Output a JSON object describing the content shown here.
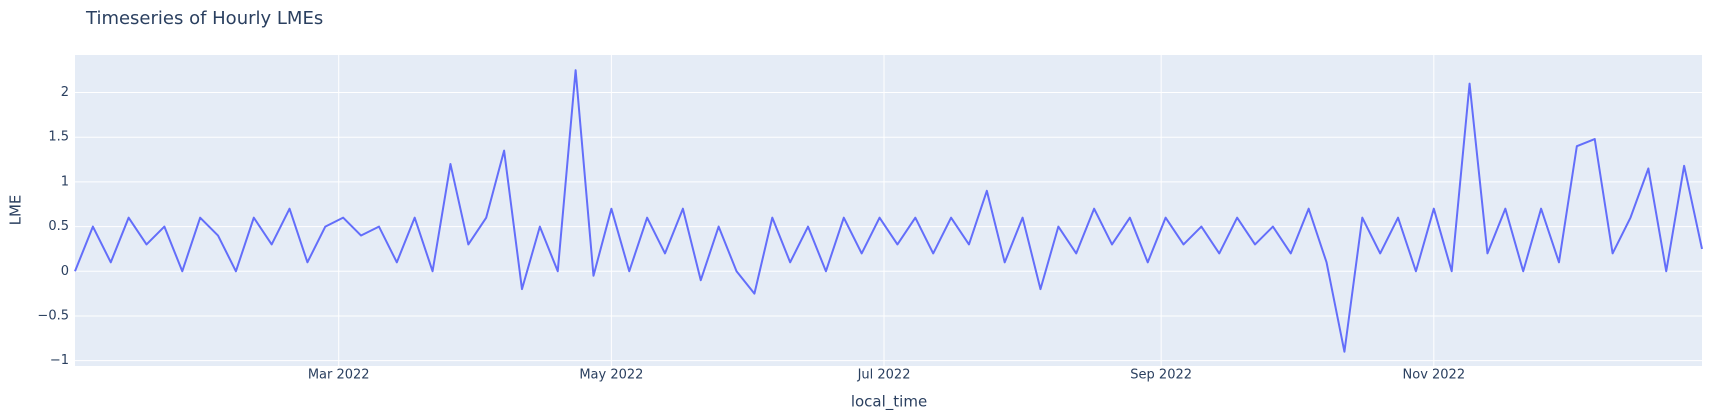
{
  "chart_data": {
    "type": "line",
    "title": "Timeseries of Hourly LMEs",
    "x_label": "local_time",
    "y_label": "LME",
    "grid": true,
    "xlim": [
      "2022-01-01",
      "2022-12-31"
    ],
    "xticks": [
      {
        "value": "2022-03-01",
        "label": "Mar 2022"
      },
      {
        "value": "2022-05-01",
        "label": "May 2022"
      },
      {
        "value": "2022-07-01",
        "label": "Jul 2022"
      },
      {
        "value": "2022-09-01",
        "label": "Sep 2022"
      },
      {
        "value": "2022-11-01",
        "label": "Nov 2022"
      }
    ],
    "ylim": [
      -1.06,
      2.42
    ],
    "yticks": [
      {
        "value": -1,
        "label": "−1"
      },
      {
        "value": -0.5,
        "label": "−0.5"
      },
      0,
      0.5,
      1,
      1.5,
      2
    ],
    "x": [
      "2022-01-01",
      "2022-01-05",
      "2022-01-09",
      "2022-01-13",
      "2022-01-17",
      "2022-01-21",
      "2022-01-25",
      "2022-01-29",
      "2022-02-02",
      "2022-02-06",
      "2022-02-10",
      "2022-02-14",
      "2022-02-18",
      "2022-02-22",
      "2022-02-26",
      "2022-03-02",
      "2022-03-06",
      "2022-03-10",
      "2022-03-14",
      "2022-03-18",
      "2022-03-22",
      "2022-03-26",
      "2022-03-30",
      "2022-04-03",
      "2022-04-07",
      "2022-04-11",
      "2022-04-15",
      "2022-04-19",
      "2022-04-23",
      "2022-04-27",
      "2022-05-01",
      "2022-05-05",
      "2022-05-09",
      "2022-05-13",
      "2022-05-17",
      "2022-05-21",
      "2022-05-25",
      "2022-05-29",
      "2022-06-02",
      "2022-06-06",
      "2022-06-10",
      "2022-06-14",
      "2022-06-18",
      "2022-06-22",
      "2022-06-26",
      "2022-06-30",
      "2022-07-04",
      "2022-07-08",
      "2022-07-12",
      "2022-07-16",
      "2022-07-20",
      "2022-07-24",
      "2022-07-28",
      "2022-08-01",
      "2022-08-05",
      "2022-08-09",
      "2022-08-13",
      "2022-08-17",
      "2022-08-21",
      "2022-08-25",
      "2022-08-29",
      "2022-09-02",
      "2022-09-06",
      "2022-09-10",
      "2022-09-14",
      "2022-09-18",
      "2022-09-22",
      "2022-09-26",
      "2022-09-30",
      "2022-10-04",
      "2022-10-08",
      "2022-10-12",
      "2022-10-16",
      "2022-10-20",
      "2022-10-24",
      "2022-10-28",
      "2022-11-01",
      "2022-11-05",
      "2022-11-09",
      "2022-11-13",
      "2022-11-17",
      "2022-11-21",
      "2022-11-25",
      "2022-11-29",
      "2022-12-03",
      "2022-12-07",
      "2022-12-11",
      "2022-12-15",
      "2022-12-19",
      "2022-12-23",
      "2022-12-27",
      "2022-12-31"
    ],
    "series": [
      {
        "color": "#636efa",
        "values": [
          0.0,
          0.5,
          0.1,
          0.6,
          0.3,
          0.5,
          0.0,
          0.6,
          0.4,
          0.0,
          0.6,
          0.3,
          0.7,
          0.1,
          0.5,
          0.6,
          0.4,
          0.5,
          0.1,
          0.6,
          0.0,
          1.2,
          0.3,
          0.6,
          1.35,
          -0.2,
          0.5,
          0.0,
          2.25,
          -0.05,
          0.7,
          0.0,
          0.6,
          0.2,
          0.7,
          -0.1,
          0.5,
          0.0,
          -0.25,
          0.6,
          0.1,
          0.5,
          0.0,
          0.6,
          0.2,
          0.6,
          0.3,
          0.6,
          0.2,
          0.6,
          0.3,
          0.9,
          0.1,
          0.6,
          -0.2,
          0.5,
          0.2,
          0.7,
          0.3,
          0.6,
          0.1,
          0.6,
          0.3,
          0.5,
          0.2,
          0.6,
          0.3,
          0.5,
          0.2,
          0.7,
          0.1,
          -0.9,
          0.6,
          0.2,
          0.6,
          0.0,
          0.7,
          0.0,
          2.1,
          0.2,
          0.7,
          0.0,
          0.7,
          0.1,
          1.4,
          1.48,
          0.2,
          0.6,
          1.15,
          0.0,
          1.18,
          0.25
        ]
      }
    ]
  }
}
